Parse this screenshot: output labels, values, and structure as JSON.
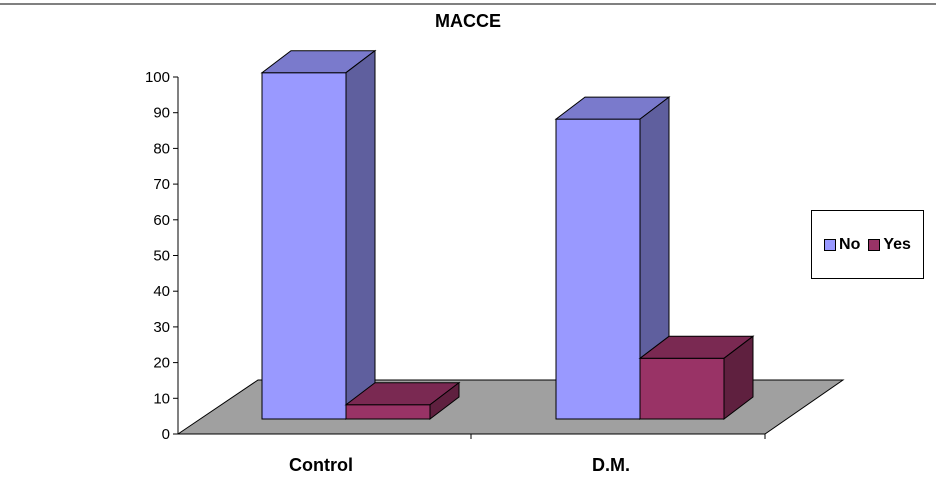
{
  "chart_data": {
    "type": "bar",
    "title": "MACCE",
    "xlabel": "",
    "ylabel": "",
    "categories": [
      "Control",
      "D.M."
    ],
    "series": [
      {
        "name": "No",
        "values": [
          97,
          84
        ],
        "color": "#9999ff"
      },
      {
        "name": "Yes",
        "values": [
          4,
          17
        ],
        "color": "#993366"
      }
    ],
    "ylim": [
      0,
      100
    ],
    "yticks": [
      0,
      10,
      20,
      30,
      40,
      50,
      60,
      70,
      80,
      90,
      100
    ],
    "legend_position": "right",
    "style": "3d-column",
    "floor_color": "#a0a0a0",
    "grid": false
  }
}
